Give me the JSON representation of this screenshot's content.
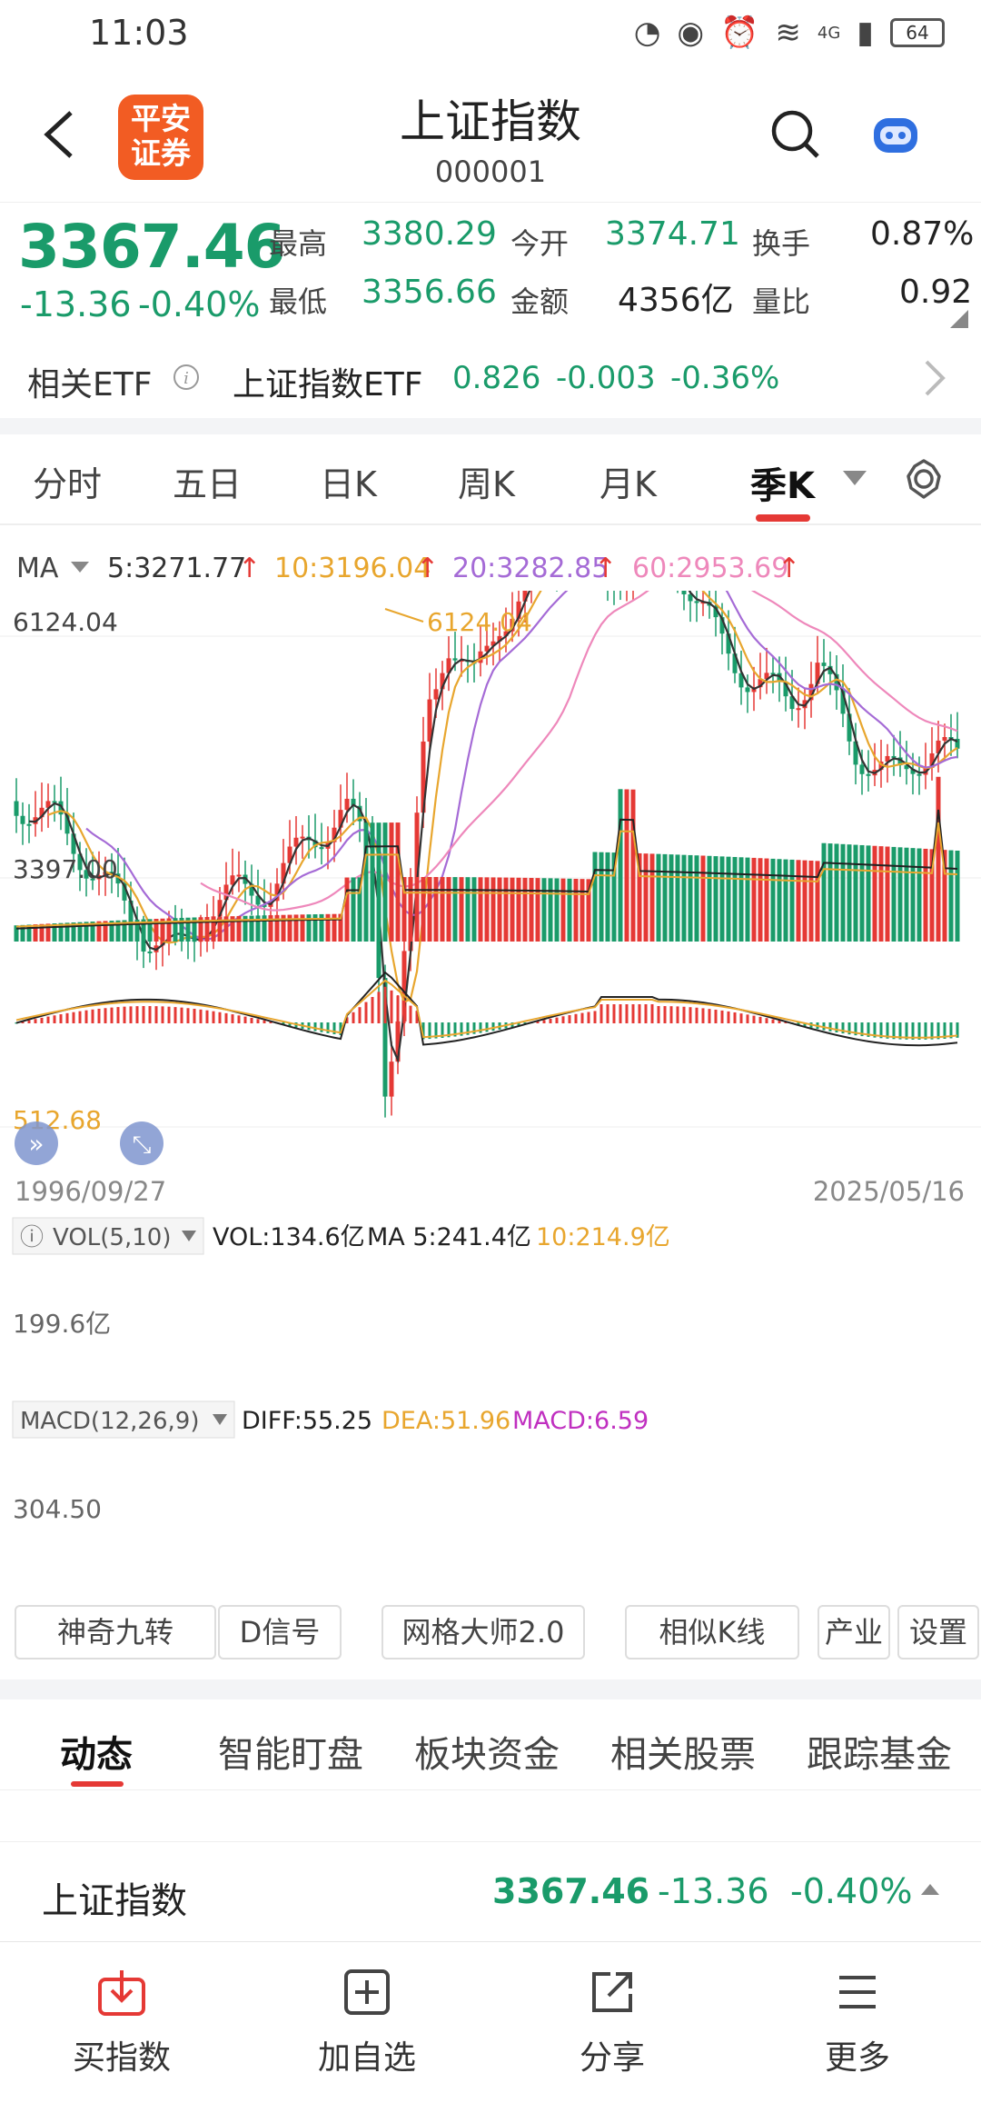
{
  "status": {
    "time": "11:03",
    "network": "4G",
    "battery": "64"
  },
  "header": {
    "logo_line1": "平安",
    "logo_line2": "证券",
    "title": "上证指数",
    "code": "000001"
  },
  "quote": {
    "price": "3367.46",
    "change": "-13.36",
    "change_pct": "-0.40%",
    "high_label": "最高",
    "high": "3380.29",
    "low_label": "最低",
    "low": "3356.66",
    "open_label": "今开",
    "open": "3374.71",
    "amount_label": "金额",
    "amount": "4356亿",
    "turnover_label": "换手",
    "turnover": "0.87%",
    "volratio_label": "量比",
    "volratio": "0.92"
  },
  "etf": {
    "label": "相关ETF",
    "name": "上证指数ETF",
    "price": "0.826",
    "change": "-0.003",
    "change_pct": "-0.36%"
  },
  "ktabs": [
    "分时",
    "五日",
    "日K",
    "周K",
    "月K",
    "季K"
  ],
  "ma": {
    "label": "MA",
    "ma5": "5:3271.77",
    "ma10": "10:3196.04",
    "ma20": "20:3282.85",
    "ma60": "60:2953.69",
    "arrow": "↑"
  },
  "chart_data": {
    "type": "candlestick",
    "price_axis": {
      "top": "6124.04",
      "mid": "3397.00",
      "bottom": "512.68"
    },
    "max_label": "6124.04",
    "x_start": "1996/09/27",
    "x_end": "2025/05/16",
    "volume": {
      "header": "VOL(5,10)",
      "vol": "VOL:134.6亿",
      "ma5": "MA 5:241.4亿",
      "ma10": "10:214.9亿",
      "axis": "199.6亿"
    },
    "macd": {
      "header": "MACD(12,26,9)",
      "diff": "DIFF:55.25",
      "dea": "DEA:51.96",
      "macd": "MACD:6.59",
      "axis": "304.50"
    },
    "colors": {
      "up": "#e53935",
      "down": "#1a9b6a",
      "ma5": "#333333",
      "ma10": "#e8a62e",
      "ma20": "#a56bd6",
      "ma60": "#ee88bb"
    }
  },
  "tools": [
    "神奇九转",
    "D信号",
    "网格大师2.0",
    "相似K线",
    "产业",
    "设置"
  ],
  "newstabs": [
    "动态",
    "智能盯盘",
    "板块资金",
    "相关股票",
    "跟踪基金"
  ],
  "summary": {
    "name": "上证指数",
    "price": "3367.46",
    "change": "-13.36",
    "change_pct": "-0.40%"
  },
  "bottom": [
    "买指数",
    "加自选",
    "分享",
    "更多"
  ]
}
